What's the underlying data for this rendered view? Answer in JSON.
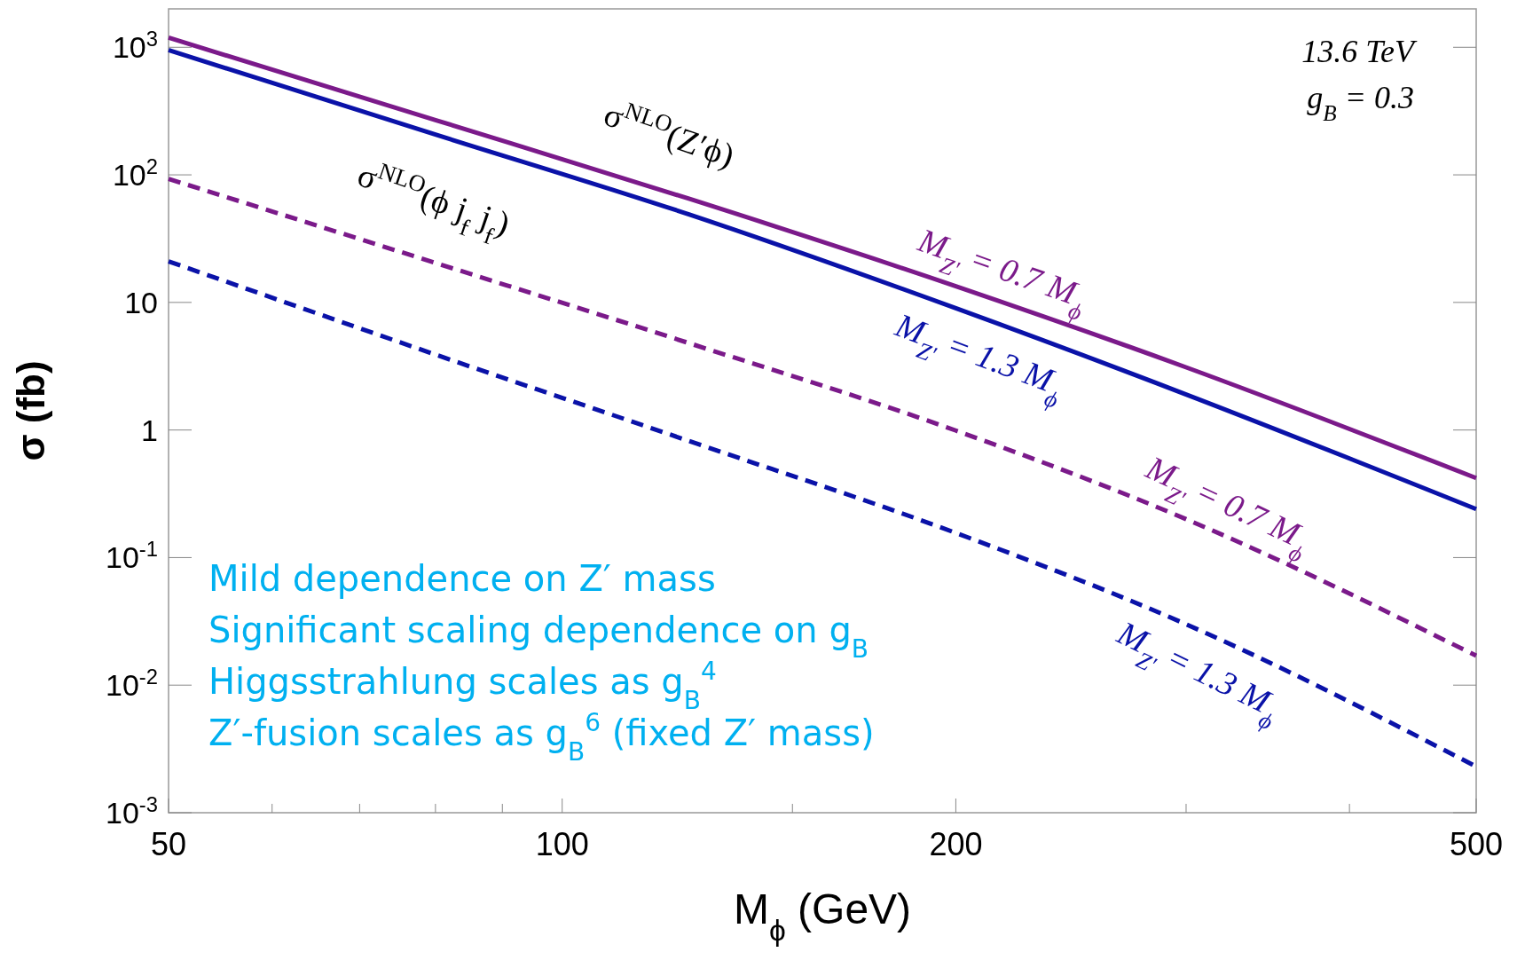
{
  "chart_data": {
    "type": "line",
    "xlabel": "M$_{ϕ}$  (GeV)",
    "ylabel": "σ (fb)",
    "log": "xy",
    "grid": false,
    "legend": false,
    "xlim": [
      50,
      500
    ],
    "ylim": [
      0.001,
      2000
    ],
    "xticks": [
      50,
      {
        "value": 60,
        "label": null
      },
      {
        "value": 70,
        "label": null
      },
      {
        "value": 80,
        "label": null
      },
      {
        "value": 90,
        "label": null
      },
      100,
      {
        "value": 150,
        "label": null
      },
      200,
      {
        "value": 300,
        "label": null
      },
      {
        "value": 400,
        "label": null
      },
      500
    ],
    "yticks": [
      {
        "value": 0.001,
        "label": "10$^{-3}$"
      },
      {
        "value": 0.01,
        "label": "10$^{-2}$"
      },
      {
        "value": 0.1,
        "label": "10$^{-1}$"
      },
      1,
      10,
      {
        "value": 100,
        "label": "10$^{2}$"
      },
      {
        "value": 1000,
        "label": "10$^{3}$"
      }
    ],
    "x": [
      50,
      80,
      125,
      200,
      300,
      500
    ],
    "series": [
      {
        "name": "M$_{Z'}$ = 0.7 M$_{ϕ}$",
        "color": "#7b1a8a",
        "line_style": "solid",
        "values": [
          1190,
          269,
          65,
          13.4,
          3.1,
          0.42
        ]
      },
      {
        "name": "M$_{Z'}$ = 1.3 M$_{ϕ}$",
        "color": "#0a12a8",
        "line_style": "solid",
        "values": [
          950,
          207,
          49,
          9.0,
          1.9,
          0.24
        ]
      },
      {
        "name": "M$_{Z'}$ = 0.7 M$_{ϕ}$",
        "color": "#7b1a8a",
        "line_style": "dashed",
        "values": [
          93,
          20.4,
          4.8,
          0.99,
          0.2,
          0.017
        ]
      },
      {
        "name": "M$_{Z'}$ = 1.3 M$_{ϕ}$",
        "color": "#0a12a8",
        "line_style": "dashed",
        "values": [
          21,
          3.9,
          0.82,
          0.156,
          0.03,
          0.0023
        ]
      }
    ],
    "annotations": [
      "13.6 TeV",
      "g$_{B}$  = 0.3",
      "Mild dependence on Z′ mass",
      "Significant scaling dependence on g$_{B}$",
      "Higgsstrahlung scales as g$_{B}$$^{4}$",
      "Z′-fusion scales as g$_{B}$$^{6}$ (fixed Z′ mass)",
      "σ$^{NLO}$(Z′ϕ)",
      "σ$^{NLO}$(ϕ j$_{f}$ j$_{f}$)"
    ]
  }
}
